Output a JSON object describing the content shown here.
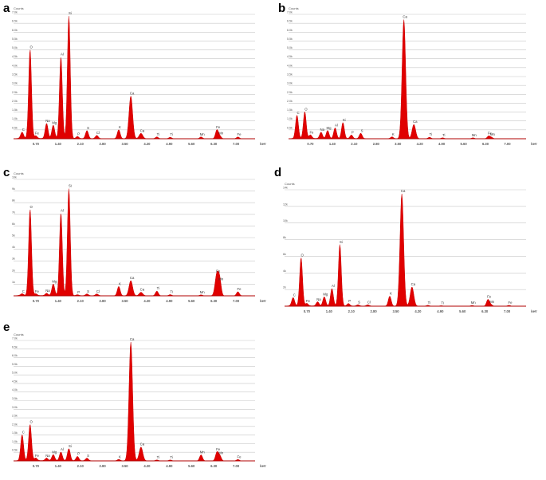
{
  "chart_data": [
    {
      "type": "area",
      "panel": "a",
      "y_unit": "Counts",
      "y_tick_labels": [
        "0.5k",
        "1.0k",
        "1.5k",
        "2.0k",
        "2.5k",
        "3.0k",
        "3.5k",
        "4.0k",
        "4.5k",
        "5.0k",
        "5.5k",
        "6.0k",
        "6.5k",
        "7.0k"
      ],
      "ylim": [
        0,
        7000
      ],
      "x_unit": "keV",
      "x_tick_labels": [
        "0.70",
        "1.40",
        "2.10",
        "2.80",
        "3.50",
        "4.20",
        "4.90",
        "5.60",
        "6.30",
        "7.00"
      ],
      "xlim": [
        0,
        7.6
      ],
      "peaks": [
        {
          "label": "C",
          "x": 0.27,
          "y": 350
        },
        {
          "label": "O",
          "x": 0.52,
          "y": 5000
        },
        {
          "label": "Fe",
          "x": 0.7,
          "y": 150
        },
        {
          "label": "Na",
          "x": 1.04,
          "y": 850
        },
        {
          "label": "Mg",
          "x": 1.25,
          "y": 750
        },
        {
          "label": "Al",
          "x": 1.49,
          "y": 4600
        },
        {
          "label": "Si",
          "x": 1.74,
          "y": 6900
        },
        {
          "label": "P",
          "x": 2.01,
          "y": 120
        },
        {
          "label": "S",
          "x": 2.31,
          "y": 450
        },
        {
          "label": "Cl",
          "x": 2.62,
          "y": 180
        },
        {
          "label": "K",
          "x": 3.31,
          "y": 500
        },
        {
          "label": "Ca",
          "x": 3.69,
          "y": 2400
        },
        {
          "label": "Ca",
          "x": 4.01,
          "y": 300
        },
        {
          "label": "Ti",
          "x": 4.51,
          "y": 100
        },
        {
          "label": "Ti",
          "x": 4.93,
          "y": 80
        },
        {
          "label": "Mn",
          "x": 5.9,
          "y": 100
        },
        {
          "label": "Fe",
          "x": 6.4,
          "y": 500
        },
        {
          "label": "Mn",
          "x": 6.49,
          "y": 150
        },
        {
          "label": "Fe",
          "x": 7.06,
          "y": 100
        }
      ]
    },
    {
      "type": "area",
      "panel": "b",
      "y_unit": "Counts",
      "y_tick_labels": [
        "0.5k",
        "1.0k",
        "1.5k",
        "2.0k",
        "2.5k",
        "3.0k",
        "3.5k",
        "4.0k",
        "4.5k",
        "5.0k",
        "5.5k",
        "6.0k",
        "6.5k",
        "7.0k"
      ],
      "ylim": [
        0,
        7000
      ],
      "x_unit": "keV",
      "x_tick_labels": [
        "0.70",
        "1.40",
        "2.10",
        "2.80",
        "3.50",
        "4.20",
        "4.90",
        "5.60",
        "6.30",
        "7.00"
      ],
      "xlim": [
        0,
        7.6
      ],
      "peaks": [
        {
          "label": "C",
          "x": 0.27,
          "y": 1300
        },
        {
          "label": "O",
          "x": 0.52,
          "y": 1500
        },
        {
          "label": "Fe",
          "x": 0.7,
          "y": 200
        },
        {
          "label": "Na",
          "x": 1.04,
          "y": 350
        },
        {
          "label": "Mg",
          "x": 1.25,
          "y": 450
        },
        {
          "label": "Al",
          "x": 1.49,
          "y": 600
        },
        {
          "label": "Si",
          "x": 1.74,
          "y": 900
        },
        {
          "label": "P",
          "x": 2.01,
          "y": 200
        },
        {
          "label": "S",
          "x": 2.31,
          "y": 300
        },
        {
          "label": "K",
          "x": 3.31,
          "y": 100
        },
        {
          "label": "Ca",
          "x": 3.69,
          "y": 6700
        },
        {
          "label": "Ca",
          "x": 4.01,
          "y": 800
        },
        {
          "label": "Ti",
          "x": 4.51,
          "y": 80
        },
        {
          "label": "Ti",
          "x": 4.93,
          "y": 50
        },
        {
          "label": "Mn",
          "x": 5.9,
          "y": 50
        },
        {
          "label": "Fe",
          "x": 6.4,
          "y": 150
        },
        {
          "label": "Mn",
          "x": 6.49,
          "y": 80
        }
      ]
    },
    {
      "type": "area",
      "panel": "c",
      "y_unit": "Counts",
      "y_tick_labels": [
        "10k",
        "9k",
        "8k",
        "7k",
        "6k",
        "5k",
        "4k",
        "3k",
        "2k",
        "1k"
      ],
      "ylim": [
        0,
        10000
      ],
      "x_unit": "keV",
      "x_tick_labels": [
        "0.70",
        "1.40",
        "2.10",
        "2.80",
        "3.50",
        "4.20",
        "4.90",
        "5.60",
        "6.30",
        "7.00"
      ],
      "xlim": [
        0,
        7.6
      ],
      "peaks": [
        {
          "label": "C",
          "x": 0.27,
          "y": 150
        },
        {
          "label": "O",
          "x": 0.52,
          "y": 7400
        },
        {
          "label": "Fe",
          "x": 0.7,
          "y": 150
        },
        {
          "label": "Na",
          "x": 1.04,
          "y": 200
        },
        {
          "label": "Mg",
          "x": 1.25,
          "y": 1000
        },
        {
          "label": "Al",
          "x": 1.49,
          "y": 7100
        },
        {
          "label": "Si",
          "x": 1.74,
          "y": 9200
        },
        {
          "label": "P",
          "x": 2.01,
          "y": 80
        },
        {
          "label": "S",
          "x": 2.31,
          "y": 150
        },
        {
          "label": "Cl",
          "x": 2.62,
          "y": 150
        },
        {
          "label": "K",
          "x": 3.31,
          "y": 800
        },
        {
          "label": "Ca",
          "x": 3.69,
          "y": 1300
        },
        {
          "label": "Ca",
          "x": 4.01,
          "y": 300
        },
        {
          "label": "Ti",
          "x": 4.51,
          "y": 400
        },
        {
          "label": "Ti",
          "x": 4.93,
          "y": 100
        },
        {
          "label": "Mn",
          "x": 5.9,
          "y": 80
        },
        {
          "label": "Fe",
          "x": 6.4,
          "y": 1900
        },
        {
          "label": "Mn",
          "x": 6.49,
          "y": 1200
        },
        {
          "label": "Fe",
          "x": 7.06,
          "y": 350
        }
      ]
    },
    {
      "type": "area",
      "panel": "d",
      "y_unit": "Counts",
      "y_tick_labels": [
        "14k",
        "12k",
        "10k",
        "8k",
        "6k",
        "4k",
        "2k"
      ],
      "ylim": [
        0,
        14000
      ],
      "x_unit": "keV",
      "x_tick_labels": [
        "0.70",
        "1.40",
        "2.10",
        "2.80",
        "3.50",
        "4.20",
        "4.90",
        "5.60",
        "6.30",
        "7.00"
      ],
      "xlim": [
        0,
        7.6
      ],
      "peaks": [
        {
          "label": "C",
          "x": 0.27,
          "y": 1000
        },
        {
          "label": "O",
          "x": 0.52,
          "y": 5800
        },
        {
          "label": "Fe",
          "x": 0.7,
          "y": 300
        },
        {
          "label": "Na",
          "x": 1.04,
          "y": 500
        },
        {
          "label": "Mg",
          "x": 1.25,
          "y": 1100
        },
        {
          "label": "Al",
          "x": 1.49,
          "y": 2100
        },
        {
          "label": "Si",
          "x": 1.74,
          "y": 7400
        },
        {
          "label": "P",
          "x": 2.01,
          "y": 300
        },
        {
          "label": "S",
          "x": 2.31,
          "y": 150
        },
        {
          "label": "Cl",
          "x": 2.62,
          "y": 150
        },
        {
          "label": "K",
          "x": 3.31,
          "y": 1200
        },
        {
          "label": "Ca",
          "x": 3.69,
          "y": 13500
        },
        {
          "label": "Ca",
          "x": 4.01,
          "y": 2300
        },
        {
          "label": "Ti",
          "x": 4.51,
          "y": 100
        },
        {
          "label": "Ti",
          "x": 4.93,
          "y": 50
        },
        {
          "label": "Mn",
          "x": 5.9,
          "y": 80
        },
        {
          "label": "Fe",
          "x": 6.4,
          "y": 800
        },
        {
          "label": "Mn",
          "x": 6.49,
          "y": 200
        },
        {
          "label": "Fe",
          "x": 7.06,
          "y": 100
        }
      ]
    },
    {
      "type": "area",
      "panel": "e",
      "y_unit": "Counts",
      "y_tick_labels": [
        "0.5k",
        "1.0k",
        "1.5k",
        "2.0k",
        "2.5k",
        "3.0k",
        "3.5k",
        "4.0k",
        "4.5k",
        "5.0k",
        "5.5k",
        "6.0k",
        "6.5k",
        "7.0k"
      ],
      "ylim": [
        0,
        7000
      ],
      "x_unit": "keV",
      "x_tick_labels": [
        "0.70",
        "1.40",
        "2.10",
        "2.80",
        "3.50",
        "4.20",
        "4.90",
        "5.60",
        "6.30",
        "7.00"
      ],
      "xlim": [
        0,
        7.6
      ],
      "peaks": [
        {
          "label": "C",
          "x": 0.27,
          "y": 1500
        },
        {
          "label": "O",
          "x": 0.52,
          "y": 2100
        },
        {
          "label": "Fe",
          "x": 0.7,
          "y": 150
        },
        {
          "label": "Na",
          "x": 1.04,
          "y": 150
        },
        {
          "label": "Mg",
          "x": 1.25,
          "y": 350
        },
        {
          "label": "Al",
          "x": 1.49,
          "y": 500
        },
        {
          "label": "Si",
          "x": 1.74,
          "y": 700
        },
        {
          "label": "P",
          "x": 2.01,
          "y": 250
        },
        {
          "label": "S",
          "x": 2.31,
          "y": 150
        },
        {
          "label": "K",
          "x": 3.31,
          "y": 80
        },
        {
          "label": "Ca",
          "x": 3.69,
          "y": 6900
        },
        {
          "label": "Ca",
          "x": 4.01,
          "y": 800
        },
        {
          "label": "Ti",
          "x": 4.51,
          "y": 50
        },
        {
          "label": "Ti",
          "x": 4.93,
          "y": 50
        },
        {
          "label": "Mn",
          "x": 5.9,
          "y": 350
        },
        {
          "label": "Fe",
          "x": 6.4,
          "y": 500
        },
        {
          "label": "Mn",
          "x": 6.49,
          "y": 300
        },
        {
          "label": "Fe",
          "x": 7.06,
          "y": 80
        }
      ]
    }
  ],
  "colors": {
    "fill": "#e00000",
    "stroke": "#cc0000",
    "grid": "#c8c8c8",
    "text": "#555555"
  }
}
